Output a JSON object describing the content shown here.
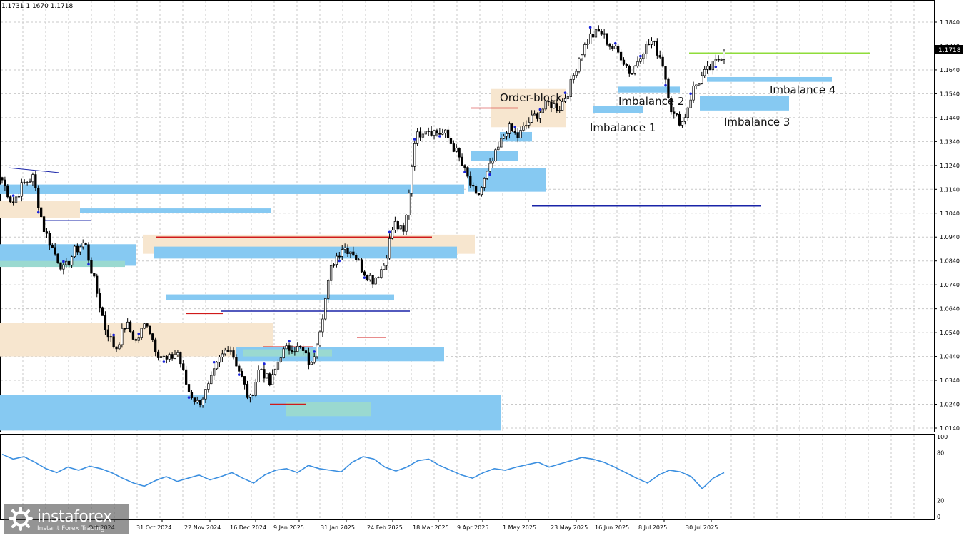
{
  "header": {
    "ohlc": "1.1731 1.1670 1.1718"
  },
  "brand": {
    "name": "instaforex",
    "tagline": "Instant Forex Trading"
  },
  "colors": {
    "imbalance": "#86c9f2",
    "orderblock": "#f7e6cf",
    "teal": "#9ad9d0",
    "red_level": "#d01a1a",
    "blue_level": "#1a24a8",
    "green_level": "#8fdc3a",
    "indicator": "#3b8fe0"
  },
  "chart_data": [
    {
      "type": "candlestick",
      "symbol_price_label": "1.1718",
      "ylim": [
        1.013,
        1.19
      ],
      "y_ticks": [
        "1.1840",
        "1.1740",
        "1.1640",
        "1.1540",
        "1.1440",
        "1.1340",
        "1.1240",
        "1.1140",
        "1.1040",
        "1.0940",
        "1.0840",
        "1.0740",
        "1.0640",
        "1.0540",
        "1.0440",
        "1.0340",
        "1.0240",
        "1.0140"
      ],
      "x_ticks": [
        "Oct 2024",
        "31 Oct 2024",
        "22 Nov 2024",
        "16 Dec 2024",
        "9 Jan 2025",
        "31 Jan 2025",
        "24 Feb 2025",
        "18 Mar 2025",
        "9 Apr 2025",
        "1 May 2025",
        "23 May 2025",
        "16 Jun 2025",
        "8 Jul 2025",
        "30 Jul 2025"
      ],
      "grid": true,
      "annotations": [
        "Order-block",
        "Imbalance 1",
        "Imbalance 2",
        "Imbalance 3",
        "Imbalance 4"
      ],
      "close_path": [
        [
          "Sep 2024",
          1.118
        ],
        [
          "Sep 2024",
          1.108
        ],
        [
          "Oct 2024",
          1.116
        ],
        [
          "Oct 2024",
          1.119
        ],
        [
          "Oct 2024",
          1.098
        ],
        [
          "Oct 2024",
          1.088
        ],
        [
          "Oct 2024",
          1.08
        ],
        [
          "31 Oct 2024",
          1.088
        ],
        [
          "31 Oct 2024",
          1.092
        ],
        [
          "31 Oct 2024",
          1.074
        ],
        [
          "22 Nov 2024",
          1.056
        ],
        [
          "22 Nov 2024",
          1.047
        ],
        [
          "22 Nov 2024",
          1.058
        ],
        [
          "22 Nov 2024",
          1.05
        ],
        [
          "22 Nov 2024",
          1.059
        ],
        [
          "16 Dec 2024",
          1.046
        ],
        [
          "16 Dec 2024",
          1.042
        ],
        [
          "16 Dec 2024",
          1.046
        ],
        [
          "9 Jan 2025",
          1.03
        ],
        [
          "9 Jan 2025",
          1.024
        ],
        [
          "9 Jan 2025",
          1.031
        ],
        [
          "9 Jan 2025",
          1.042
        ],
        [
          "9 Jan 2025",
          1.049
        ],
        [
          "31 Jan 2025",
          1.038
        ],
        [
          "31 Jan 2025",
          1.025
        ],
        [
          "31 Jan 2025",
          1.04
        ],
        [
          "31 Jan 2025",
          1.032
        ],
        [
          "24 Feb 2025",
          1.045
        ],
        [
          "24 Feb 2025",
          1.048
        ],
        [
          "24 Feb 2025",
          1.047
        ],
        [
          "24 Feb 2025",
          1.04
        ],
        [
          "24 Feb 2025",
          1.06
        ],
        [
          "24 Feb 2025",
          1.083
        ],
        [
          "18 Mar 2025",
          1.09
        ],
        [
          "18 Mar 2025",
          1.088
        ],
        [
          "18 Mar 2025",
          1.08
        ],
        [
          "18 Mar 2025",
          1.076
        ],
        [
          "18 Mar 2025",
          1.082
        ],
        [
          "9 Apr 2025",
          1.1
        ],
        [
          "9 Apr 2025",
          1.095
        ],
        [
          "9 Apr 2025",
          1.135
        ],
        [
          "9 Apr 2025",
          1.14
        ],
        [
          "9 Apr 2025",
          1.138
        ],
        [
          "9 Apr 2025",
          1.137
        ],
        [
          "1 May 2025",
          1.13
        ],
        [
          "1 May 2025",
          1.12
        ],
        [
          "1 May 2025",
          1.11
        ],
        [
          "1 May 2025",
          1.12
        ],
        [
          "1 May 2025",
          1.13
        ],
        [
          "23 May 2025",
          1.14
        ],
        [
          "23 May 2025",
          1.136
        ],
        [
          "23 May 2025",
          1.142
        ],
        [
          "23 May 2025",
          1.146
        ],
        [
          "23 May 2025",
          1.15
        ],
        [
          "16 Jun 2025",
          1.148
        ],
        [
          "16 Jun 2025",
          1.156
        ],
        [
          "16 Jun 2025",
          1.17
        ],
        [
          "16 Jun 2025",
          1.178
        ],
        [
          "16 Jun 2025",
          1.18
        ],
        [
          "8 Jul 2025",
          1.174
        ],
        [
          "8 Jul 2025",
          1.17
        ],
        [
          "8 Jul 2025",
          1.162
        ],
        [
          "8 Jul 2025",
          1.172
        ],
        [
          "8 Jul 2025",
          1.176
        ],
        [
          "8 Jul 2025",
          1.168
        ],
        [
          "30 Jul 2025",
          1.145
        ],
        [
          "30 Jul 2025",
          1.142
        ],
        [
          "30 Jul 2025",
          1.156
        ],
        [
          "30 Jul 2025",
          1.162
        ],
        [
          "30 Jul 2025",
          1.166
        ],
        [
          "30 Jul 2025",
          1.1718
        ]
      ]
    },
    {
      "type": "line",
      "name": "oscillator",
      "ylim": [
        0,
        100
      ],
      "y_ticks": [
        "100",
        "80",
        "20",
        "0"
      ],
      "values": [
        78,
        72,
        75,
        68,
        60,
        55,
        62,
        58,
        63,
        60,
        55,
        48,
        42,
        38,
        45,
        50,
        44,
        48,
        52,
        46,
        50,
        55,
        48,
        42,
        52,
        58,
        60,
        55,
        64,
        60,
        58,
        56,
        68,
        75,
        72,
        62,
        57,
        62,
        70,
        72,
        64,
        58,
        52,
        48,
        55,
        60,
        58,
        62,
        65,
        68,
        62,
        66,
        70,
        74,
        72,
        68,
        62,
        55,
        48,
        42,
        52,
        58,
        56,
        50,
        35,
        48,
        55
      ]
    }
  ]
}
